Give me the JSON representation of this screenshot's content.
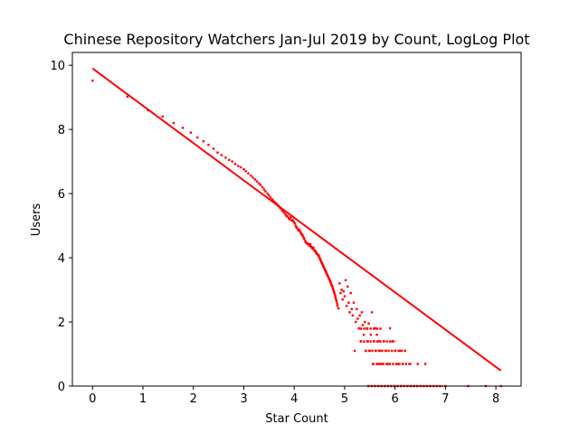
{
  "chart_data": {
    "type": "scatter",
    "title": "Chinese Repository Watchers Jan-Jul 2019 by Count, LogLog Plot",
    "xlabel": "Star Count",
    "ylabel": "Users",
    "xlim": [
      -0.4,
      8.5
    ],
    "ylim": [
      0,
      10.4
    ],
    "xticks": [
      0,
      1,
      2,
      3,
      4,
      5,
      6,
      7,
      8
    ],
    "yticks": [
      0,
      2,
      4,
      6,
      8,
      10
    ],
    "xtick_labels": [
      "0",
      "1",
      "2",
      "3",
      "4",
      "5",
      "6",
      "7",
      "8"
    ],
    "ytick_labels": [
      "0",
      "2",
      "4",
      "6",
      "8",
      "10"
    ],
    "grid": false,
    "legend": "none",
    "color": "#ff0000",
    "series": [
      {
        "kind": "scatter",
        "points": [
          [
            0.0,
            9.52
          ],
          [
            0.69,
            9.02
          ],
          [
            1.1,
            8.6
          ],
          [
            1.39,
            8.4
          ],
          [
            1.61,
            8.2
          ],
          [
            1.79,
            8.05
          ],
          [
            1.95,
            7.9
          ],
          [
            2.08,
            7.75
          ],
          [
            2.2,
            7.63
          ],
          [
            2.3,
            7.52
          ],
          [
            2.4,
            7.4
          ],
          [
            2.48,
            7.28
          ],
          [
            2.56,
            7.2
          ],
          [
            2.64,
            7.12
          ],
          [
            2.71,
            7.05
          ],
          [
            2.77,
            7.0
          ],
          [
            2.83,
            6.92
          ],
          [
            2.89,
            6.86
          ],
          [
            2.94,
            6.82
          ],
          [
            3.0,
            6.76
          ],
          [
            3.04,
            6.7
          ],
          [
            3.09,
            6.63
          ],
          [
            3.14,
            6.56
          ],
          [
            3.18,
            6.5
          ],
          [
            3.22,
            6.44
          ],
          [
            3.26,
            6.38
          ],
          [
            3.3,
            6.32
          ],
          [
            3.33,
            6.27
          ],
          [
            3.37,
            6.2
          ],
          [
            3.4,
            6.13
          ],
          [
            3.43,
            6.07
          ],
          [
            3.47,
            6.0
          ],
          [
            3.5,
            5.94
          ],
          [
            3.53,
            5.88
          ],
          [
            3.56,
            5.82
          ],
          [
            3.58,
            5.78
          ],
          [
            3.61,
            5.74
          ],
          [
            3.64,
            5.69
          ],
          [
            3.66,
            5.66
          ],
          [
            3.69,
            5.62
          ],
          [
            3.71,
            5.57
          ],
          [
            3.74,
            5.53
          ],
          [
            3.76,
            5.48
          ],
          [
            3.78,
            5.44
          ],
          [
            3.81,
            5.39
          ],
          [
            3.83,
            5.34
          ],
          [
            3.85,
            5.29
          ],
          [
            3.87,
            5.3
          ],
          [
            3.89,
            5.23
          ],
          [
            3.91,
            5.2
          ],
          [
            3.93,
            5.26
          ],
          [
            3.95,
            5.16
          ],
          [
            3.97,
            5.18
          ],
          [
            3.99,
            5.12
          ],
          [
            4.01,
            5.07
          ],
          [
            4.03,
            5.0
          ],
          [
            4.04,
            4.96
          ],
          [
            4.06,
            4.92
          ],
          [
            4.08,
            4.86
          ],
          [
            4.1,
            4.88
          ],
          [
            4.11,
            4.83
          ],
          [
            4.13,
            4.79
          ],
          [
            4.14,
            4.74
          ],
          [
            4.16,
            4.72
          ],
          [
            4.17,
            4.67
          ],
          [
            4.19,
            4.62
          ],
          [
            4.2,
            4.58
          ],
          [
            4.22,
            4.52
          ],
          [
            4.23,
            4.47
          ],
          [
            4.25,
            4.46
          ],
          [
            4.26,
            4.44
          ],
          [
            4.28,
            4.43
          ],
          [
            4.29,
            4.4
          ],
          [
            4.3,
            4.38
          ],
          [
            4.32,
            4.42
          ],
          [
            4.33,
            4.35
          ],
          [
            4.34,
            4.33
          ],
          [
            4.36,
            4.3
          ],
          [
            4.37,
            4.28
          ],
          [
            4.38,
            4.32
          ],
          [
            4.39,
            4.25
          ],
          [
            4.41,
            4.22
          ],
          [
            4.42,
            4.2
          ],
          [
            4.43,
            4.18
          ],
          [
            4.44,
            4.15
          ],
          [
            4.45,
            4.12
          ],
          [
            4.47,
            4.1
          ],
          [
            4.48,
            4.07
          ],
          [
            4.49,
            4.05
          ],
          [
            4.5,
            4.0
          ],
          [
            4.51,
            3.97
          ],
          [
            4.52,
            3.94
          ],
          [
            4.53,
            3.9
          ],
          [
            4.54,
            3.86
          ],
          [
            4.55,
            3.83
          ],
          [
            4.56,
            3.8
          ],
          [
            4.57,
            3.77
          ],
          [
            4.58,
            3.72
          ],
          [
            4.59,
            3.7
          ],
          [
            4.6,
            3.66
          ],
          [
            4.61,
            3.62
          ],
          [
            4.62,
            3.6
          ],
          [
            4.63,
            3.56
          ],
          [
            4.64,
            3.52
          ],
          [
            4.65,
            3.48
          ],
          [
            4.66,
            3.45
          ],
          [
            4.67,
            3.42
          ],
          [
            4.68,
            3.38
          ],
          [
            4.69,
            3.35
          ],
          [
            4.7,
            3.32
          ],
          [
            4.71,
            3.28
          ],
          [
            4.72,
            3.25
          ],
          [
            4.73,
            3.2
          ],
          [
            4.74,
            3.16
          ],
          [
            4.75,
            3.12
          ],
          [
            4.76,
            3.08
          ],
          [
            4.77,
            3.03
          ],
          [
            4.78,
            2.98
          ],
          [
            4.79,
            2.93
          ],
          [
            4.8,
            2.88
          ],
          [
            4.81,
            2.82
          ],
          [
            4.82,
            2.76
          ],
          [
            4.83,
            2.7
          ],
          [
            4.84,
            2.64
          ],
          [
            4.85,
            2.57
          ],
          [
            4.86,
            2.5
          ],
          [
            4.88,
            2.42
          ],
          [
            4.9,
            3.2
          ],
          [
            4.92,
            2.9
          ],
          [
            4.94,
            3.0
          ],
          [
            4.96,
            2.7
          ],
          [
            4.98,
            2.95
          ],
          [
            5.0,
            2.8
          ],
          [
            5.02,
            3.3
          ],
          [
            5.04,
            2.5
          ],
          [
            5.06,
            3.1
          ],
          [
            5.08,
            2.6
          ],
          [
            5.1,
            2.3
          ],
          [
            5.12,
            2.9
          ],
          [
            5.14,
            2.4
          ],
          [
            5.16,
            2.2
          ],
          [
            5.18,
            2.6
          ],
          [
            5.2,
            1.1
          ],
          [
            5.22,
            2.0
          ],
          [
            5.24,
            2.4
          ],
          [
            5.26,
            2.1
          ],
          [
            5.28,
            1.8
          ],
          [
            5.3,
            2.2
          ],
          [
            5.32,
            1.4
          ],
          [
            5.34,
            2.3
          ],
          [
            5.36,
            1.9
          ],
          [
            5.38,
            1.6
          ],
          [
            5.4,
            2.0
          ],
          [
            5.42,
            1.1
          ],
          [
            5.44,
            1.8
          ],
          [
            5.46,
            1.4
          ],
          [
            5.48,
            1.95
          ],
          [
            5.5,
            1.1
          ],
          [
            5.52,
            1.6
          ],
          [
            5.54,
            2.3
          ],
          [
            5.56,
            0.69
          ],
          [
            5.58,
            1.4
          ],
          [
            5.6,
            1.8
          ],
          [
            5.62,
            1.1
          ],
          [
            5.64,
            1.6
          ],
          [
            5.66,
            0.69
          ],
          [
            5.68,
            1.4
          ],
          [
            5.7,
            1.1
          ],
          [
            5.74,
            0.69
          ],
          [
            5.78,
            1.4
          ],
          [
            5.82,
            1.1
          ],
          [
            5.86,
            0.69
          ],
          [
            5.9,
            1.8
          ],
          [
            5.95,
            1.4
          ],
          [
            6.0,
            1.1
          ],
          [
            6.05,
            0.69
          ],
          [
            6.1,
            1.1
          ],
          [
            6.15,
            0.69
          ],
          [
            6.2,
            1.1
          ],
          [
            6.3,
            0.69
          ],
          [
            6.45,
            0.69
          ],
          [
            6.6,
            0.69
          ],
          [
            7.0,
            0.0
          ],
          [
            7.45,
            0.0
          ],
          [
            7.8,
            0.0
          ],
          [
            8.1,
            0.0
          ]
        ],
        "horizontal_runs": [
          {
            "y": 1.79,
            "x_from": 5.3,
            "x_to": 5.75
          },
          {
            "y": 1.39,
            "x_from": 5.3,
            "x_to": 6.02
          },
          {
            "y": 1.1,
            "x_from": 5.4,
            "x_to": 6.2
          },
          {
            "y": 0.69,
            "x_from": 5.55,
            "x_to": 6.3
          },
          {
            "y": 0.0,
            "x_from": 5.45,
            "x_to": 6.95
          }
        ]
      },
      {
        "kind": "fit-line",
        "points": [
          [
            0.0,
            9.9
          ],
          [
            8.1,
            0.48
          ]
        ]
      }
    ]
  }
}
